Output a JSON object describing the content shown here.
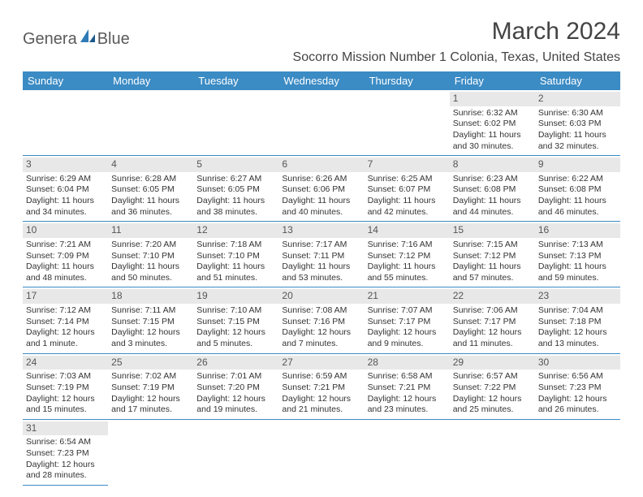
{
  "brand": {
    "part1": "Genera",
    "part2": "Blue"
  },
  "header": {
    "month_title": "March 2024",
    "location": "Socorro Mission Number 1 Colonia, Texas, United States"
  },
  "day_names": [
    "Sunday",
    "Monday",
    "Tuesday",
    "Wednesday",
    "Thursday",
    "Friday",
    "Saturday"
  ],
  "colors": {
    "header_bg": "#3b8bc4",
    "header_text": "#ffffff",
    "daynum_bg": "#e8e8e8",
    "cell_border": "#3b8bc4"
  },
  "weeks": [
    [
      {
        "empty": true
      },
      {
        "empty": true
      },
      {
        "empty": true
      },
      {
        "empty": true
      },
      {
        "empty": true
      },
      {
        "day": "1",
        "sunrise": "Sunrise: 6:32 AM",
        "sunset": "Sunset: 6:02 PM",
        "daylight1": "Daylight: 11 hours",
        "daylight2": "and 30 minutes."
      },
      {
        "day": "2",
        "sunrise": "Sunrise: 6:30 AM",
        "sunset": "Sunset: 6:03 PM",
        "daylight1": "Daylight: 11 hours",
        "daylight2": "and 32 minutes."
      }
    ],
    [
      {
        "day": "3",
        "sunrise": "Sunrise: 6:29 AM",
        "sunset": "Sunset: 6:04 PM",
        "daylight1": "Daylight: 11 hours",
        "daylight2": "and 34 minutes."
      },
      {
        "day": "4",
        "sunrise": "Sunrise: 6:28 AM",
        "sunset": "Sunset: 6:05 PM",
        "daylight1": "Daylight: 11 hours",
        "daylight2": "and 36 minutes."
      },
      {
        "day": "5",
        "sunrise": "Sunrise: 6:27 AM",
        "sunset": "Sunset: 6:05 PM",
        "daylight1": "Daylight: 11 hours",
        "daylight2": "and 38 minutes."
      },
      {
        "day": "6",
        "sunrise": "Sunrise: 6:26 AM",
        "sunset": "Sunset: 6:06 PM",
        "daylight1": "Daylight: 11 hours",
        "daylight2": "and 40 minutes."
      },
      {
        "day": "7",
        "sunrise": "Sunrise: 6:25 AM",
        "sunset": "Sunset: 6:07 PM",
        "daylight1": "Daylight: 11 hours",
        "daylight2": "and 42 minutes."
      },
      {
        "day": "8",
        "sunrise": "Sunrise: 6:23 AM",
        "sunset": "Sunset: 6:08 PM",
        "daylight1": "Daylight: 11 hours",
        "daylight2": "and 44 minutes."
      },
      {
        "day": "9",
        "sunrise": "Sunrise: 6:22 AM",
        "sunset": "Sunset: 6:08 PM",
        "daylight1": "Daylight: 11 hours",
        "daylight2": "and 46 minutes."
      }
    ],
    [
      {
        "day": "10",
        "sunrise": "Sunrise: 7:21 AM",
        "sunset": "Sunset: 7:09 PM",
        "daylight1": "Daylight: 11 hours",
        "daylight2": "and 48 minutes."
      },
      {
        "day": "11",
        "sunrise": "Sunrise: 7:20 AM",
        "sunset": "Sunset: 7:10 PM",
        "daylight1": "Daylight: 11 hours",
        "daylight2": "and 50 minutes."
      },
      {
        "day": "12",
        "sunrise": "Sunrise: 7:18 AM",
        "sunset": "Sunset: 7:10 PM",
        "daylight1": "Daylight: 11 hours",
        "daylight2": "and 51 minutes."
      },
      {
        "day": "13",
        "sunrise": "Sunrise: 7:17 AM",
        "sunset": "Sunset: 7:11 PM",
        "daylight1": "Daylight: 11 hours",
        "daylight2": "and 53 minutes."
      },
      {
        "day": "14",
        "sunrise": "Sunrise: 7:16 AM",
        "sunset": "Sunset: 7:12 PM",
        "daylight1": "Daylight: 11 hours",
        "daylight2": "and 55 minutes."
      },
      {
        "day": "15",
        "sunrise": "Sunrise: 7:15 AM",
        "sunset": "Sunset: 7:12 PM",
        "daylight1": "Daylight: 11 hours",
        "daylight2": "and 57 minutes."
      },
      {
        "day": "16",
        "sunrise": "Sunrise: 7:13 AM",
        "sunset": "Sunset: 7:13 PM",
        "daylight1": "Daylight: 11 hours",
        "daylight2": "and 59 minutes."
      }
    ],
    [
      {
        "day": "17",
        "sunrise": "Sunrise: 7:12 AM",
        "sunset": "Sunset: 7:14 PM",
        "daylight1": "Daylight: 12 hours",
        "daylight2": "and 1 minute."
      },
      {
        "day": "18",
        "sunrise": "Sunrise: 7:11 AM",
        "sunset": "Sunset: 7:15 PM",
        "daylight1": "Daylight: 12 hours",
        "daylight2": "and 3 minutes."
      },
      {
        "day": "19",
        "sunrise": "Sunrise: 7:10 AM",
        "sunset": "Sunset: 7:15 PM",
        "daylight1": "Daylight: 12 hours",
        "daylight2": "and 5 minutes."
      },
      {
        "day": "20",
        "sunrise": "Sunrise: 7:08 AM",
        "sunset": "Sunset: 7:16 PM",
        "daylight1": "Daylight: 12 hours",
        "daylight2": "and 7 minutes."
      },
      {
        "day": "21",
        "sunrise": "Sunrise: 7:07 AM",
        "sunset": "Sunset: 7:17 PM",
        "daylight1": "Daylight: 12 hours",
        "daylight2": "and 9 minutes."
      },
      {
        "day": "22",
        "sunrise": "Sunrise: 7:06 AM",
        "sunset": "Sunset: 7:17 PM",
        "daylight1": "Daylight: 12 hours",
        "daylight2": "and 11 minutes."
      },
      {
        "day": "23",
        "sunrise": "Sunrise: 7:04 AM",
        "sunset": "Sunset: 7:18 PM",
        "daylight1": "Daylight: 12 hours",
        "daylight2": "and 13 minutes."
      }
    ],
    [
      {
        "day": "24",
        "sunrise": "Sunrise: 7:03 AM",
        "sunset": "Sunset: 7:19 PM",
        "daylight1": "Daylight: 12 hours",
        "daylight2": "and 15 minutes."
      },
      {
        "day": "25",
        "sunrise": "Sunrise: 7:02 AM",
        "sunset": "Sunset: 7:19 PM",
        "daylight1": "Daylight: 12 hours",
        "daylight2": "and 17 minutes."
      },
      {
        "day": "26",
        "sunrise": "Sunrise: 7:01 AM",
        "sunset": "Sunset: 7:20 PM",
        "daylight1": "Daylight: 12 hours",
        "daylight2": "and 19 minutes."
      },
      {
        "day": "27",
        "sunrise": "Sunrise: 6:59 AM",
        "sunset": "Sunset: 7:21 PM",
        "daylight1": "Daylight: 12 hours",
        "daylight2": "and 21 minutes."
      },
      {
        "day": "28",
        "sunrise": "Sunrise: 6:58 AM",
        "sunset": "Sunset: 7:21 PM",
        "daylight1": "Daylight: 12 hours",
        "daylight2": "and 23 minutes."
      },
      {
        "day": "29",
        "sunrise": "Sunrise: 6:57 AM",
        "sunset": "Sunset: 7:22 PM",
        "daylight1": "Daylight: 12 hours",
        "daylight2": "and 25 minutes."
      },
      {
        "day": "30",
        "sunrise": "Sunrise: 6:56 AM",
        "sunset": "Sunset: 7:23 PM",
        "daylight1": "Daylight: 12 hours",
        "daylight2": "and 26 minutes."
      }
    ],
    [
      {
        "day": "31",
        "sunrise": "Sunrise: 6:54 AM",
        "sunset": "Sunset: 7:23 PM",
        "daylight1": "Daylight: 12 hours",
        "daylight2": "and 28 minutes."
      },
      {
        "empty": true,
        "noborder": true
      },
      {
        "empty": true,
        "noborder": true
      },
      {
        "empty": true,
        "noborder": true
      },
      {
        "empty": true,
        "noborder": true
      },
      {
        "empty": true,
        "noborder": true
      },
      {
        "empty": true,
        "noborder": true
      }
    ]
  ]
}
